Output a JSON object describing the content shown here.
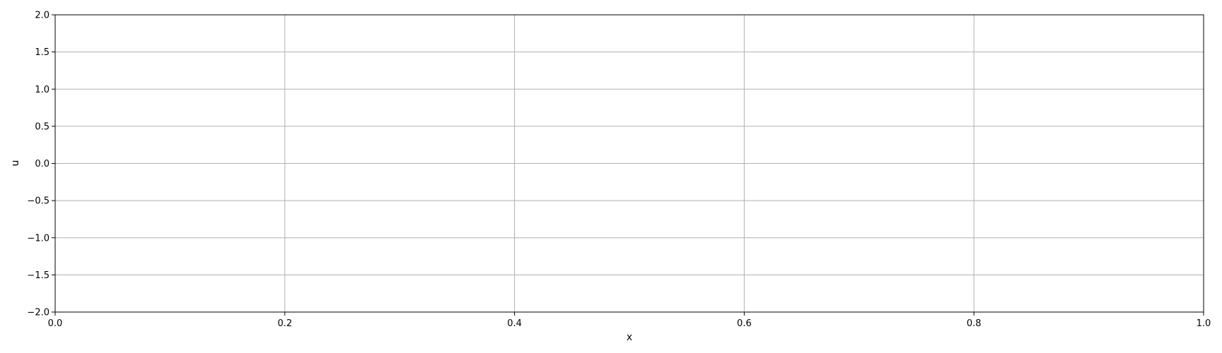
{
  "chart_data": {
    "type": "line",
    "title": "",
    "xlabel": "x",
    "ylabel": "u",
    "xlim": [
      0.0,
      1.0
    ],
    "ylim": [
      -2.0,
      2.0
    ],
    "x_ticks": [
      0.0,
      0.2,
      0.4,
      0.6,
      0.8,
      1.0
    ],
    "x_tick_labels": [
      "0.0",
      "0.2",
      "0.4",
      "0.6",
      "0.8",
      "1.0"
    ],
    "y_ticks": [
      2.0,
      1.5,
      1.0,
      0.5,
      0.0,
      -0.5,
      -1.0,
      -1.5,
      -2.0
    ],
    "y_tick_labels": [
      "2.0",
      "1.5",
      "1.0",
      "0.5",
      "0.0",
      "−0.5",
      "−1.0",
      "−1.5",
      "−2.0"
    ],
    "grid": true,
    "series": [],
    "colors": {
      "grid": "#b0b0b0",
      "axes": "#000000",
      "background": "#ffffff"
    }
  }
}
